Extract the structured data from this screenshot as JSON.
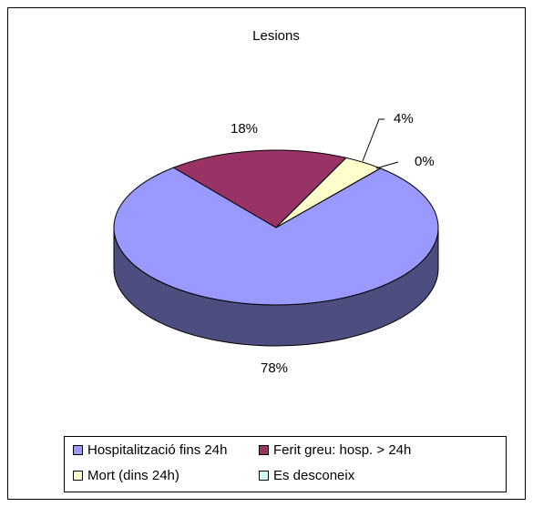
{
  "chart_data": {
    "type": "pie",
    "title": "Lesions",
    "categories": [
      "Hospitalització fins 24h",
      "Ferit greu: hosp. > 24h",
      "Mort (dins 24h)",
      "Es desconeix"
    ],
    "values": [
      78,
      18,
      4,
      0
    ],
    "value_labels": [
      "78%",
      "18%",
      "4%",
      "0%"
    ],
    "colors": [
      "#9999ff",
      "#993366",
      "#ffffcc",
      "#ccffff"
    ],
    "legend": "bottom"
  }
}
